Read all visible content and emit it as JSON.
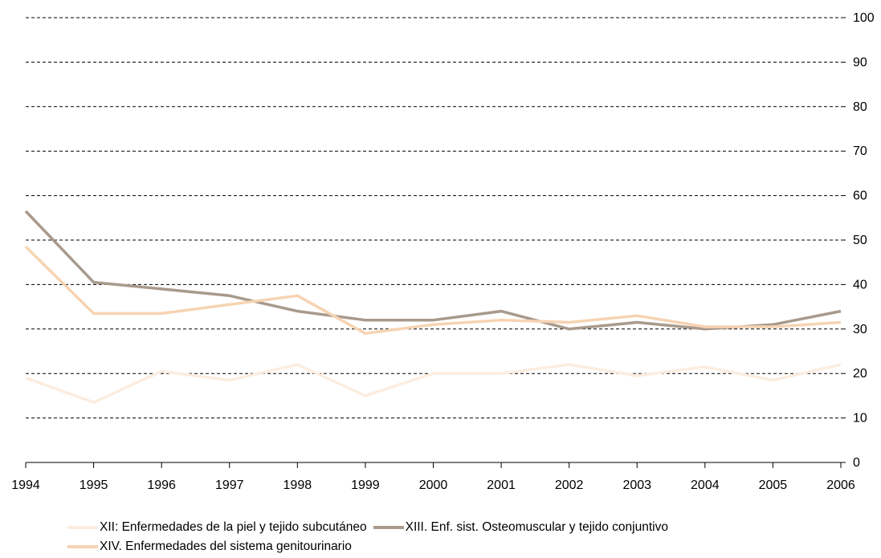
{
  "chart_data": {
    "type": "line",
    "title": "",
    "xlabel": "",
    "ylabel": "",
    "categories": [
      "1994",
      "1995",
      "1996",
      "1997",
      "1998",
      "1999",
      "2000",
      "2001",
      "2002",
      "2003",
      "2004",
      "2005",
      "2006"
    ],
    "ylim": [
      0,
      100
    ],
    "yticks": [
      "0",
      "10",
      "20",
      "30",
      "40",
      "50",
      "60",
      "70",
      "80",
      "90",
      "100"
    ],
    "grid": "horizontal-dashed",
    "y_axis_side": "right",
    "legend_placement": "bottom",
    "series": [
      {
        "name": "XII: Enfermedades de la piel y tejido subcutáneo",
        "color": "#fbede0",
        "values": [
          19,
          13.5,
          20.5,
          18.5,
          22,
          15,
          20,
          20,
          22,
          19.5,
          21.5,
          18.5,
          22
        ]
      },
      {
        "name": "XIII. Enf. sist. Osteomuscular y tejido conjuntivo",
        "color": "#a89a8c",
        "values": [
          56.5,
          40.5,
          39,
          37.5,
          34,
          32,
          32,
          34,
          30,
          31.5,
          30,
          31,
          34
        ]
      },
      {
        "name": "XIV. Enfermedades del sistema genitourinario",
        "color": "#f6d3b2",
        "values": [
          48.5,
          33.5,
          33.5,
          35.5,
          37.5,
          29,
          31,
          32,
          31.5,
          33,
          30.5,
          30.5,
          31.5
        ]
      }
    ]
  }
}
